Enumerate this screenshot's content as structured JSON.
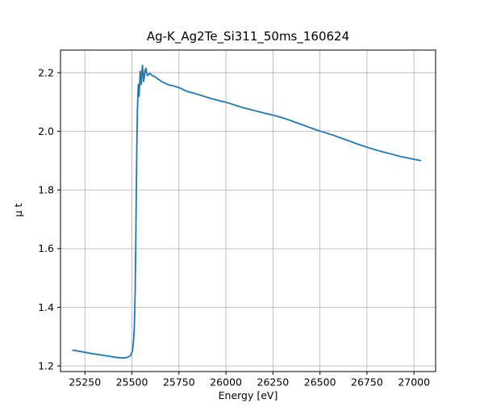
{
  "chart_data": {
    "type": "line",
    "title": "Ag-K_Ag2Te_Si311_50ms_160624",
    "xlabel": "Energy [eV]",
    "ylabel": "μ t",
    "xlim": [
      25120,
      27115
    ],
    "ylim": [
      1.181,
      2.277
    ],
    "xticks": [
      25250,
      25500,
      25750,
      26000,
      26250,
      26500,
      26750,
      27000
    ],
    "yticks": [
      1.2,
      1.4,
      1.6,
      1.8,
      2.0,
      2.2
    ],
    "grid": true,
    "legend": "none",
    "line_color": "#1f77b4",
    "grid_color": "#b0b0b0",
    "series": [
      {
        "name": "mu_t_vs_energy",
        "x": [
          25185,
          25230,
          25280,
          25330,
          25380,
          25420,
          25450,
          25475,
          25492,
          25502,
          25508,
          25513,
          25517,
          25520,
          25523,
          25526,
          25529,
          25532,
          25534,
          25536,
          25538,
          25541,
          25544,
          25547,
          25550,
          25553,
          25556,
          25559,
          25562,
          25566,
          25570,
          25574,
          25578,
          25583,
          25588,
          25594,
          25600,
          25608,
          25616,
          25625,
          25635,
          25648,
          25660,
          25675,
          25690,
          25705,
          25720,
          25740,
          25755,
          25770,
          25790,
          25810,
          25830,
          25850,
          25875,
          25900,
          25925,
          25950,
          25975,
          26000,
          26030,
          26060,
          26090,
          26120,
          26150,
          26180,
          26210,
          26240,
          26270,
          26300,
          26330,
          26360,
          26390,
          26420,
          26450,
          26480,
          26510,
          26540,
          26570,
          26600,
          26630,
          26660,
          26690,
          26720,
          26750,
          26780,
          26810,
          26840,
          26870,
          26900,
          26930,
          26960,
          26990,
          27015,
          27035
        ],
        "y": [
          1.254,
          1.249,
          1.243,
          1.238,
          1.233,
          1.229,
          1.227,
          1.229,
          1.235,
          1.25,
          1.28,
          1.34,
          1.45,
          1.6,
          1.78,
          1.95,
          2.07,
          2.13,
          2.16,
          2.14,
          2.12,
          2.16,
          2.205,
          2.17,
          2.16,
          2.2,
          2.225,
          2.2,
          2.17,
          2.185,
          2.21,
          2.215,
          2.2,
          2.19,
          2.193,
          2.198,
          2.195,
          2.19,
          2.188,
          2.185,
          2.18,
          2.174,
          2.169,
          2.164,
          2.16,
          2.157,
          2.155,
          2.151,
          2.148,
          2.143,
          2.137,
          2.133,
          2.13,
          2.126,
          2.121,
          2.116,
          2.111,
          2.107,
          2.103,
          2.099,
          2.093,
          2.087,
          2.081,
          2.076,
          2.071,
          2.066,
          2.061,
          2.057,
          2.052,
          2.046,
          2.04,
          2.033,
          2.026,
          2.019,
          2.012,
          2.005,
          1.999,
          1.993,
          1.987,
          1.98,
          1.973,
          1.966,
          1.959,
          1.952,
          1.946,
          1.94,
          1.934,
          1.929,
          1.924,
          1.919,
          1.914,
          1.91,
          1.906,
          1.903,
          1.9
        ]
      }
    ]
  }
}
